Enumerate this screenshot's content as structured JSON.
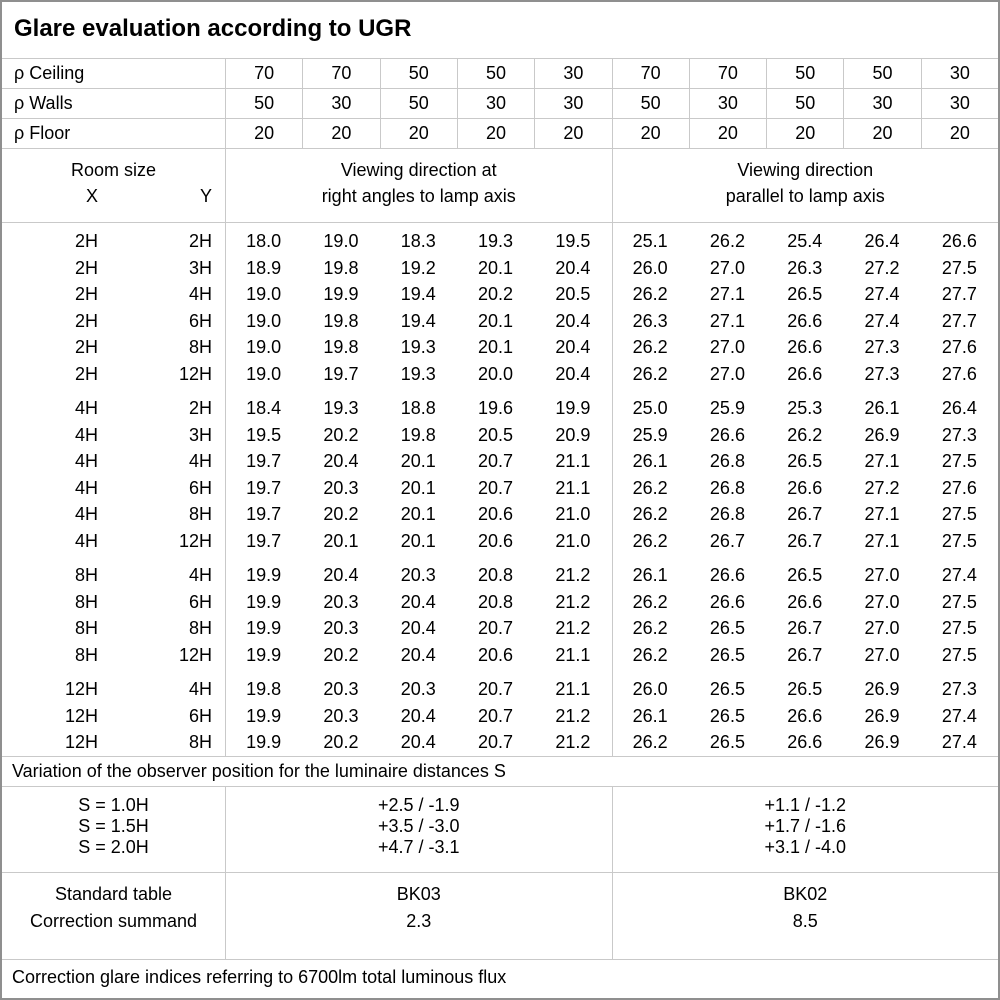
{
  "title": "Glare evaluation according to UGR",
  "reflectance_rows": [
    {
      "label": "ρ Ceiling",
      "values": [
        "70",
        "70",
        "50",
        "50",
        "30",
        "70",
        "70",
        "50",
        "50",
        "30"
      ]
    },
    {
      "label": "ρ Walls",
      "values": [
        "50",
        "30",
        "50",
        "30",
        "30",
        "50",
        "30",
        "50",
        "30",
        "30"
      ]
    },
    {
      "label": "ρ Floor",
      "values": [
        "20",
        "20",
        "20",
        "20",
        "20",
        "20",
        "20",
        "20",
        "20",
        "20"
      ]
    }
  ],
  "room_header": {
    "room_size_label": "Room size",
    "x_label": "X",
    "y_label": "Y"
  },
  "direction_headers": {
    "crosswise": [
      "Viewing direction at",
      "right angles to lamp axis"
    ],
    "parallel": [
      "Viewing direction",
      "parallel to lamp axis"
    ]
  },
  "ugr_blocks": [
    {
      "rows": [
        {
          "x": "2H",
          "y": "2H",
          "crosswise": [
            "18.0",
            "19.0",
            "18.3",
            "19.3",
            "19.5"
          ],
          "parallel": [
            "25.1",
            "26.2",
            "25.4",
            "26.4",
            "26.6"
          ]
        },
        {
          "x": "2H",
          "y": "3H",
          "crosswise": [
            "18.9",
            "19.8",
            "19.2",
            "20.1",
            "20.4"
          ],
          "parallel": [
            "26.0",
            "27.0",
            "26.3",
            "27.2",
            "27.5"
          ]
        },
        {
          "x": "2H",
          "y": "4H",
          "crosswise": [
            "19.0",
            "19.9",
            "19.4",
            "20.2",
            "20.5"
          ],
          "parallel": [
            "26.2",
            "27.1",
            "26.5",
            "27.4",
            "27.7"
          ]
        },
        {
          "x": "2H",
          "y": "6H",
          "crosswise": [
            "19.0",
            "19.8",
            "19.4",
            "20.1",
            "20.4"
          ],
          "parallel": [
            "26.3",
            "27.1",
            "26.6",
            "27.4",
            "27.7"
          ]
        },
        {
          "x": "2H",
          "y": "8H",
          "crosswise": [
            "19.0",
            "19.8",
            "19.3",
            "20.1",
            "20.4"
          ],
          "parallel": [
            "26.2",
            "27.0",
            "26.6",
            "27.3",
            "27.6"
          ]
        },
        {
          "x": "2H",
          "y": "12H",
          "crosswise": [
            "19.0",
            "19.7",
            "19.3",
            "20.0",
            "20.4"
          ],
          "parallel": [
            "26.2",
            "27.0",
            "26.6",
            "27.3",
            "27.6"
          ]
        }
      ]
    },
    {
      "rows": [
        {
          "x": "4H",
          "y": "2H",
          "crosswise": [
            "18.4",
            "19.3",
            "18.8",
            "19.6",
            "19.9"
          ],
          "parallel": [
            "25.0",
            "25.9",
            "25.3",
            "26.1",
            "26.4"
          ]
        },
        {
          "x": "4H",
          "y": "3H",
          "crosswise": [
            "19.5",
            "20.2",
            "19.8",
            "20.5",
            "20.9"
          ],
          "parallel": [
            "25.9",
            "26.6",
            "26.2",
            "26.9",
            "27.3"
          ]
        },
        {
          "x": "4H",
          "y": "4H",
          "crosswise": [
            "19.7",
            "20.4",
            "20.1",
            "20.7",
            "21.1"
          ],
          "parallel": [
            "26.1",
            "26.8",
            "26.5",
            "27.1",
            "27.5"
          ]
        },
        {
          "x": "4H",
          "y": "6H",
          "crosswise": [
            "19.7",
            "20.3",
            "20.1",
            "20.7",
            "21.1"
          ],
          "parallel": [
            "26.2",
            "26.8",
            "26.6",
            "27.2",
            "27.6"
          ]
        },
        {
          "x": "4H",
          "y": "8H",
          "crosswise": [
            "19.7",
            "20.2",
            "20.1",
            "20.6",
            "21.0"
          ],
          "parallel": [
            "26.2",
            "26.8",
            "26.7",
            "27.1",
            "27.5"
          ]
        },
        {
          "x": "4H",
          "y": "12H",
          "crosswise": [
            "19.7",
            "20.1",
            "20.1",
            "20.6",
            "21.0"
          ],
          "parallel": [
            "26.2",
            "26.7",
            "26.7",
            "27.1",
            "27.5"
          ]
        }
      ]
    },
    {
      "rows": [
        {
          "x": "8H",
          "y": "4H",
          "crosswise": [
            "19.9",
            "20.4",
            "20.3",
            "20.8",
            "21.2"
          ],
          "parallel": [
            "26.1",
            "26.6",
            "26.5",
            "27.0",
            "27.4"
          ]
        },
        {
          "x": "8H",
          "y": "6H",
          "crosswise": [
            "19.9",
            "20.3",
            "20.4",
            "20.8",
            "21.2"
          ],
          "parallel": [
            "26.2",
            "26.6",
            "26.6",
            "27.0",
            "27.5"
          ]
        },
        {
          "x": "8H",
          "y": "8H",
          "crosswise": [
            "19.9",
            "20.3",
            "20.4",
            "20.7",
            "21.2"
          ],
          "parallel": [
            "26.2",
            "26.5",
            "26.7",
            "27.0",
            "27.5"
          ]
        },
        {
          "x": "8H",
          "y": "12H",
          "crosswise": [
            "19.9",
            "20.2",
            "20.4",
            "20.6",
            "21.1"
          ],
          "parallel": [
            "26.2",
            "26.5",
            "26.7",
            "27.0",
            "27.5"
          ]
        }
      ]
    },
    {
      "rows": [
        {
          "x": "12H",
          "y": "4H",
          "crosswise": [
            "19.8",
            "20.3",
            "20.3",
            "20.7",
            "21.1"
          ],
          "parallel": [
            "26.0",
            "26.5",
            "26.5",
            "26.9",
            "27.3"
          ]
        },
        {
          "x": "12H",
          "y": "6H",
          "crosswise": [
            "19.9",
            "20.3",
            "20.4",
            "20.7",
            "21.2"
          ],
          "parallel": [
            "26.1",
            "26.5",
            "26.6",
            "26.9",
            "27.4"
          ]
        },
        {
          "x": "12H",
          "y": "8H",
          "crosswise": [
            "19.9",
            "20.2",
            "20.4",
            "20.7",
            "21.2"
          ],
          "parallel": [
            "26.2",
            "26.5",
            "26.6",
            "26.9",
            "27.4"
          ]
        }
      ]
    }
  ],
  "variation_note": "Variation of the observer position for the luminaire distances S",
  "variation_rows": [
    {
      "label": "S = 1.0H",
      "crosswise": "+2.5 / -1.9",
      "parallel": "+1.1 / -1.2"
    },
    {
      "label": "S = 1.5H",
      "crosswise": "+3.5 / -3.0",
      "parallel": "+1.7 / -1.6"
    },
    {
      "label": "S = 2.0H",
      "crosswise": "+4.7 / -3.1",
      "parallel": "+3.1 / -4.0"
    }
  ],
  "standard_rows": {
    "labels": [
      "Standard table",
      "Correction summand"
    ],
    "crosswise": [
      "BK03",
      "2.3"
    ],
    "parallel": [
      "BK02",
      "8.5"
    ]
  },
  "footer_note": "Correction glare indices referring to 6700lm total luminous flux",
  "colors": {
    "grid_line": "#c9c9c9",
    "outer_border": "#8f8f8f",
    "text": "#000000",
    "background": "#ffffff"
  }
}
